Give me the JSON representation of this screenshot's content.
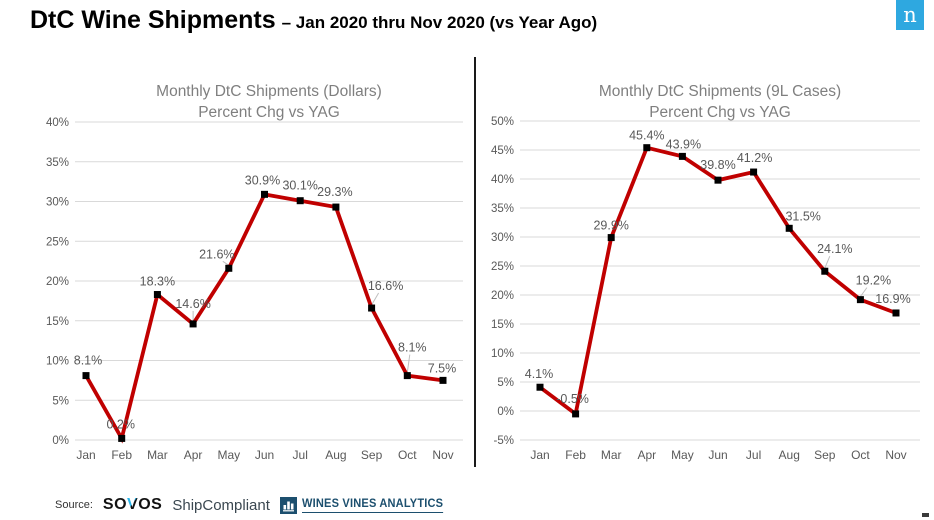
{
  "header": {
    "title": "DtC Wine Shipments",
    "subtitle": "– Jan 2020 thru Nov 2020 (vs Year Ago)",
    "logo_letter": "n"
  },
  "chart_data": [
    {
      "type": "line",
      "title": "Monthly DtC Shipments (Dollars)",
      "subtitle": "Percent Chg vs YAG",
      "categories": [
        "Jan",
        "Feb",
        "Mar",
        "Apr",
        "May",
        "Jun",
        "Jul",
        "Aug",
        "Sep",
        "Oct",
        "Nov"
      ],
      "values": [
        8.1,
        0.2,
        18.3,
        14.6,
        21.6,
        30.9,
        30.1,
        29.3,
        16.6,
        8.1,
        7.5
      ],
      "point_labels": [
        "8.1%",
        "0.2%",
        "18.3%",
        "14.6%",
        "21.6%",
        "30.9%",
        "30.1%",
        "29.3%",
        "16.6%",
        "8.1%",
        "7.5%"
      ],
      "xlabel": "",
      "ylabel": "",
      "ylim": [
        0,
        40
      ],
      "ytick_step": 5,
      "ytick_suffix": "%",
      "grid": true,
      "legend": "none",
      "line_color": "#C00000",
      "marker": "black-square",
      "marker_color": "#000000"
    },
    {
      "type": "line",
      "title": "Monthly DtC Shipments (9L Cases)",
      "subtitle": "Percent Chg vs YAG",
      "categories": [
        "Jan",
        "Feb",
        "Mar",
        "Apr",
        "May",
        "Jun",
        "Jul",
        "Aug",
        "Sep",
        "Oct",
        "Nov"
      ],
      "values": [
        4.1,
        -0.5,
        29.9,
        45.4,
        43.9,
        39.8,
        41.2,
        31.5,
        24.1,
        19.2,
        16.9
      ],
      "point_labels": [
        "4.1%",
        "-0.5%",
        "29.9%",
        "45.4%",
        "43.9%",
        "39.8%",
        "41.2%",
        "31.5%",
        "24.1%",
        "19.2%",
        "16.9%"
      ],
      "xlabel": "",
      "ylabel": "",
      "ylim": [
        -5,
        50
      ],
      "ytick_step": 5,
      "ytick_suffix": "%",
      "grid": true,
      "legend": "none",
      "line_color": "#C00000",
      "marker": "black-square",
      "marker_color": "#000000"
    }
  ],
  "footer": {
    "source_label": "Source:",
    "sovos_prefix": "SO",
    "sovos_v": "V",
    "sovos_suffix": "OS",
    "shipcompliant": "ShipCompliant",
    "wva": "WINES VINES ANALYTICS"
  },
  "colors": {
    "accent_red": "#C00000",
    "grid": "#D9D9D9",
    "axis_text": "#595959",
    "chart_title_text": "#7F7F7F",
    "nielsen_blue": "#2EA8E0",
    "wva_navy": "#1C4F6E"
  }
}
